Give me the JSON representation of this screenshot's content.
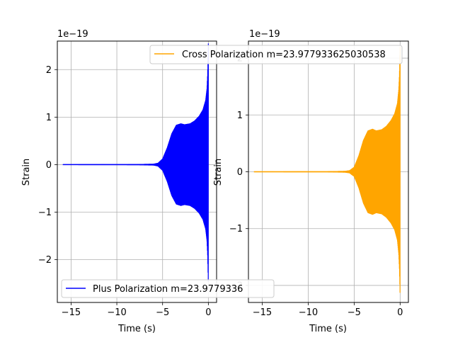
{
  "chart_data": [
    {
      "type": "line",
      "color": "#0000ff",
      "xlabel": "Time (s)",
      "ylabel": "Strain",
      "offset_text": "1e−19",
      "xlim": [
        -16.5,
        0.9
      ],
      "ylim": [
        -2.9,
        2.6
      ],
      "x_ticks": [
        -15,
        -10,
        -5,
        0
      ],
      "x_tick_labels": [
        "−15",
        "−10",
        "−5",
        "0"
      ],
      "y_ticks": [
        -2,
        -1,
        0,
        1,
        2
      ],
      "y_tick_labels": [
        "−2",
        "−1",
        "0",
        "1",
        "2"
      ],
      "grid": true,
      "legend": {
        "placement": "lower-left"
      },
      "series": [
        {
          "name": "Plus Polarization m=23.977933625030538",
          "legend_visible_text": "Plus Polarization m=23.9779336",
          "t_start": -15.9,
          "t_end": 0.0,
          "envelope": {
            "t": [
              -15.9,
              -8.0,
              -6.0,
              -5.5,
              -5.0,
              -4.5,
              -4.0,
              -3.5,
              -3.0,
              -2.6,
              -2.0,
              -1.5,
              -1.0,
              -0.6,
              -0.3,
              -0.15,
              -0.08,
              -0.03,
              0.0
            ],
            "amp": [
              0.0,
              0.002,
              0.01,
              0.03,
              0.12,
              0.35,
              0.65,
              0.83,
              0.86,
              0.84,
              0.86,
              0.92,
              1.02,
              1.15,
              1.35,
              1.6,
              1.9,
              2.3,
              2.55
            ]
          }
        }
      ]
    },
    {
      "type": "line",
      "color": "#ffa500",
      "xlabel": "Time (s)",
      "ylabel": "Strain",
      "offset_text": "1e−19",
      "xlim": [
        -16.5,
        0.9
      ],
      "ylim": [
        -2.3,
        2.3
      ],
      "x_ticks": [
        -15,
        -10,
        -5,
        0
      ],
      "x_tick_labels": [
        "−15",
        "−10",
        "−5",
        "0"
      ],
      "y_ticks": [
        -2,
        -1,
        0,
        1,
        2
      ],
      "y_tick_labels": [
        "−2",
        "−1",
        "0",
        "1",
        "2"
      ],
      "grid": true,
      "legend": {
        "placement": "top-right"
      },
      "series": [
        {
          "name": "Cross Polarization m=23.977933625030538",
          "legend_visible_text": "Cross Polarization m=23.977933625030538",
          "t_start": -15.9,
          "t_end": 0.0,
          "envelope": {
            "t": [
              -15.9,
              -8.0,
              -6.0,
              -5.5,
              -5.0,
              -4.5,
              -4.0,
              -3.5,
              -3.0,
              -2.6,
              -2.0,
              -1.5,
              -1.0,
              -0.6,
              -0.3,
              -0.15,
              -0.08,
              -0.03,
              0.0
            ],
            "amp": [
              0.0,
              0.002,
              0.008,
              0.02,
              0.08,
              0.28,
              0.55,
              0.72,
              0.75,
              0.72,
              0.74,
              0.8,
              0.9,
              1.02,
              1.2,
              1.45,
              1.7,
              2.0,
              2.2
            ]
          }
        }
      ]
    }
  ]
}
